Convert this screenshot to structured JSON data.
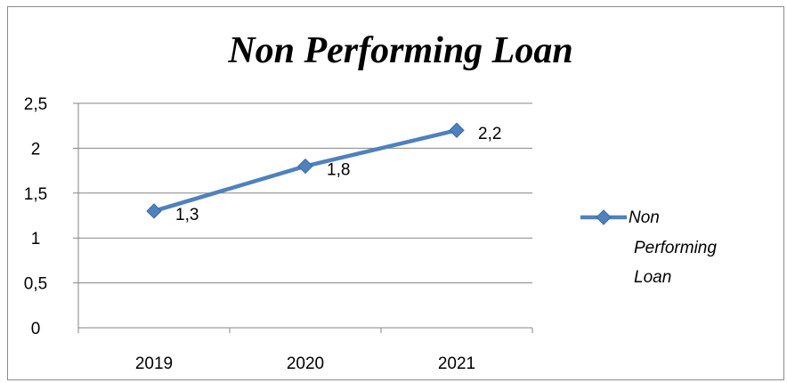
{
  "chart_data": {
    "type": "line",
    "title": "Non Performing Loan",
    "categories": [
      "2019",
      "2020",
      "2021"
    ],
    "series": [
      {
        "name": "Non Performing Loan",
        "values": [
          1.3,
          1.8,
          2.2
        ]
      }
    ],
    "data_labels": [
      "1,3",
      "1,8",
      "2,2"
    ],
    "y_ticks": [
      "0",
      "0,5",
      "1",
      "1,5",
      "2",
      "2,5"
    ],
    "y_tick_values": [
      0,
      0.5,
      1,
      1.5,
      2,
      2.5
    ],
    "legend_lines": [
      "Non",
      "Performing",
      "Loan"
    ],
    "ylim": [
      0,
      2.5
    ],
    "grid": true,
    "legend_position": "right",
    "colors": {
      "series": "#4F81BD",
      "grid": "#868686",
      "axis": "#868686"
    }
  }
}
